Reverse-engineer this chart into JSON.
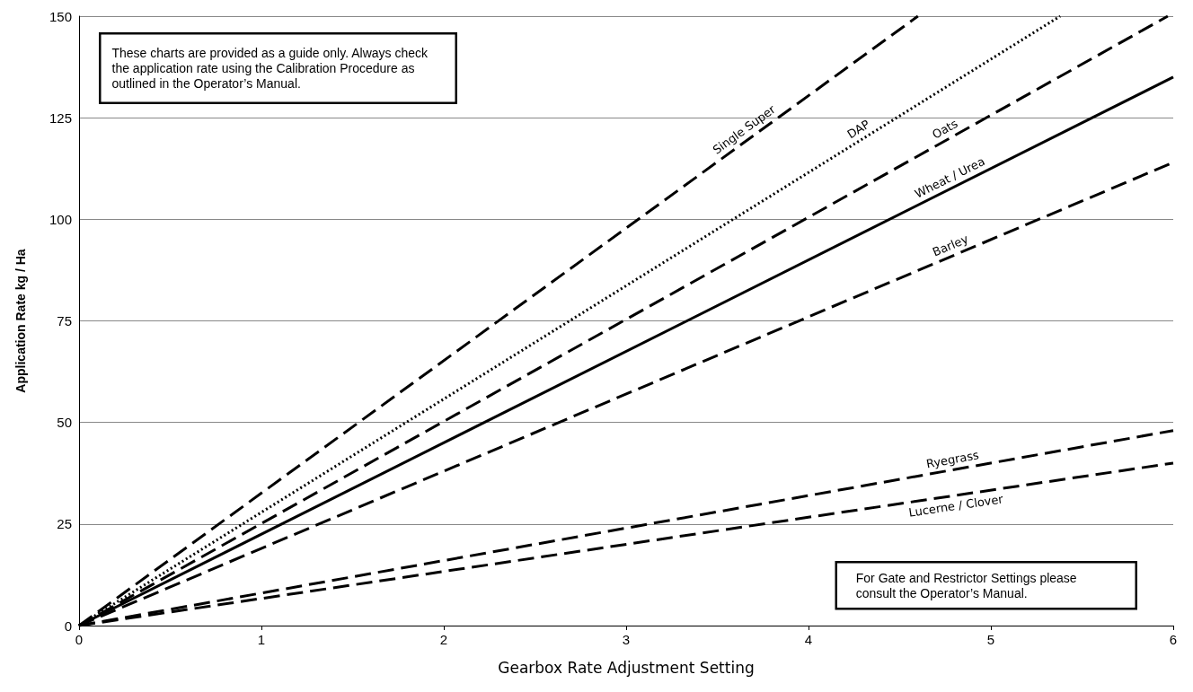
{
  "chart_data": {
    "type": "line",
    "xlabel": "Gearbox Rate Adjustment Setting",
    "ylabel": "Application Rate kg / Ha",
    "xlim": [
      0,
      6
    ],
    "xticks": [
      0,
      1,
      2,
      3,
      4,
      5,
      6
    ],
    "ylim": [
      0,
      150
    ],
    "yticks": [
      0,
      25,
      50,
      75,
      100,
      125,
      150
    ],
    "grid": "y",
    "marker": "none",
    "legend": false,
    "series": [
      {
        "name": "Single Super",
        "color": "#000000",
        "line_style": "dashed",
        "x": [
          0,
          4.6
        ],
        "values": [
          0,
          150
        ]
      },
      {
        "name": "DAP",
        "color": "#000000",
        "line_style": "dotted",
        "x": [
          0,
          5.38
        ],
        "values": [
          0,
          150
        ]
      },
      {
        "name": "Oats",
        "color": "#000000",
        "line_style": "dashed",
        "x": [
          0,
          5.97
        ],
        "values": [
          0,
          150
        ]
      },
      {
        "name": "Wheat / Urea",
        "color": "#000000",
        "line_style": "solid",
        "x": [
          0,
          6
        ],
        "values": [
          0,
          135
        ]
      },
      {
        "name": "Barley",
        "color": "#000000",
        "line_style": "dashed",
        "x": [
          0,
          6
        ],
        "values": [
          0,
          114
        ]
      },
      {
        "name": "Ryegrass",
        "color": "#000000",
        "line_style": "dashed",
        "x": [
          0,
          6
        ],
        "values": [
          0,
          48
        ]
      },
      {
        "name": "Lucerne / Clover",
        "color": "#000000",
        "line_style": "dashed",
        "x": [
          0,
          6
        ],
        "values": [
          0,
          40
        ]
      }
    ],
    "annotations": [
      "These charts are provided as a guide only. Always check the application rate using the Calibration Procedure as outlined in the Operator’s Manual.",
      "For Gate and Restrictor Settings please consult the Operator’s Manual."
    ]
  }
}
